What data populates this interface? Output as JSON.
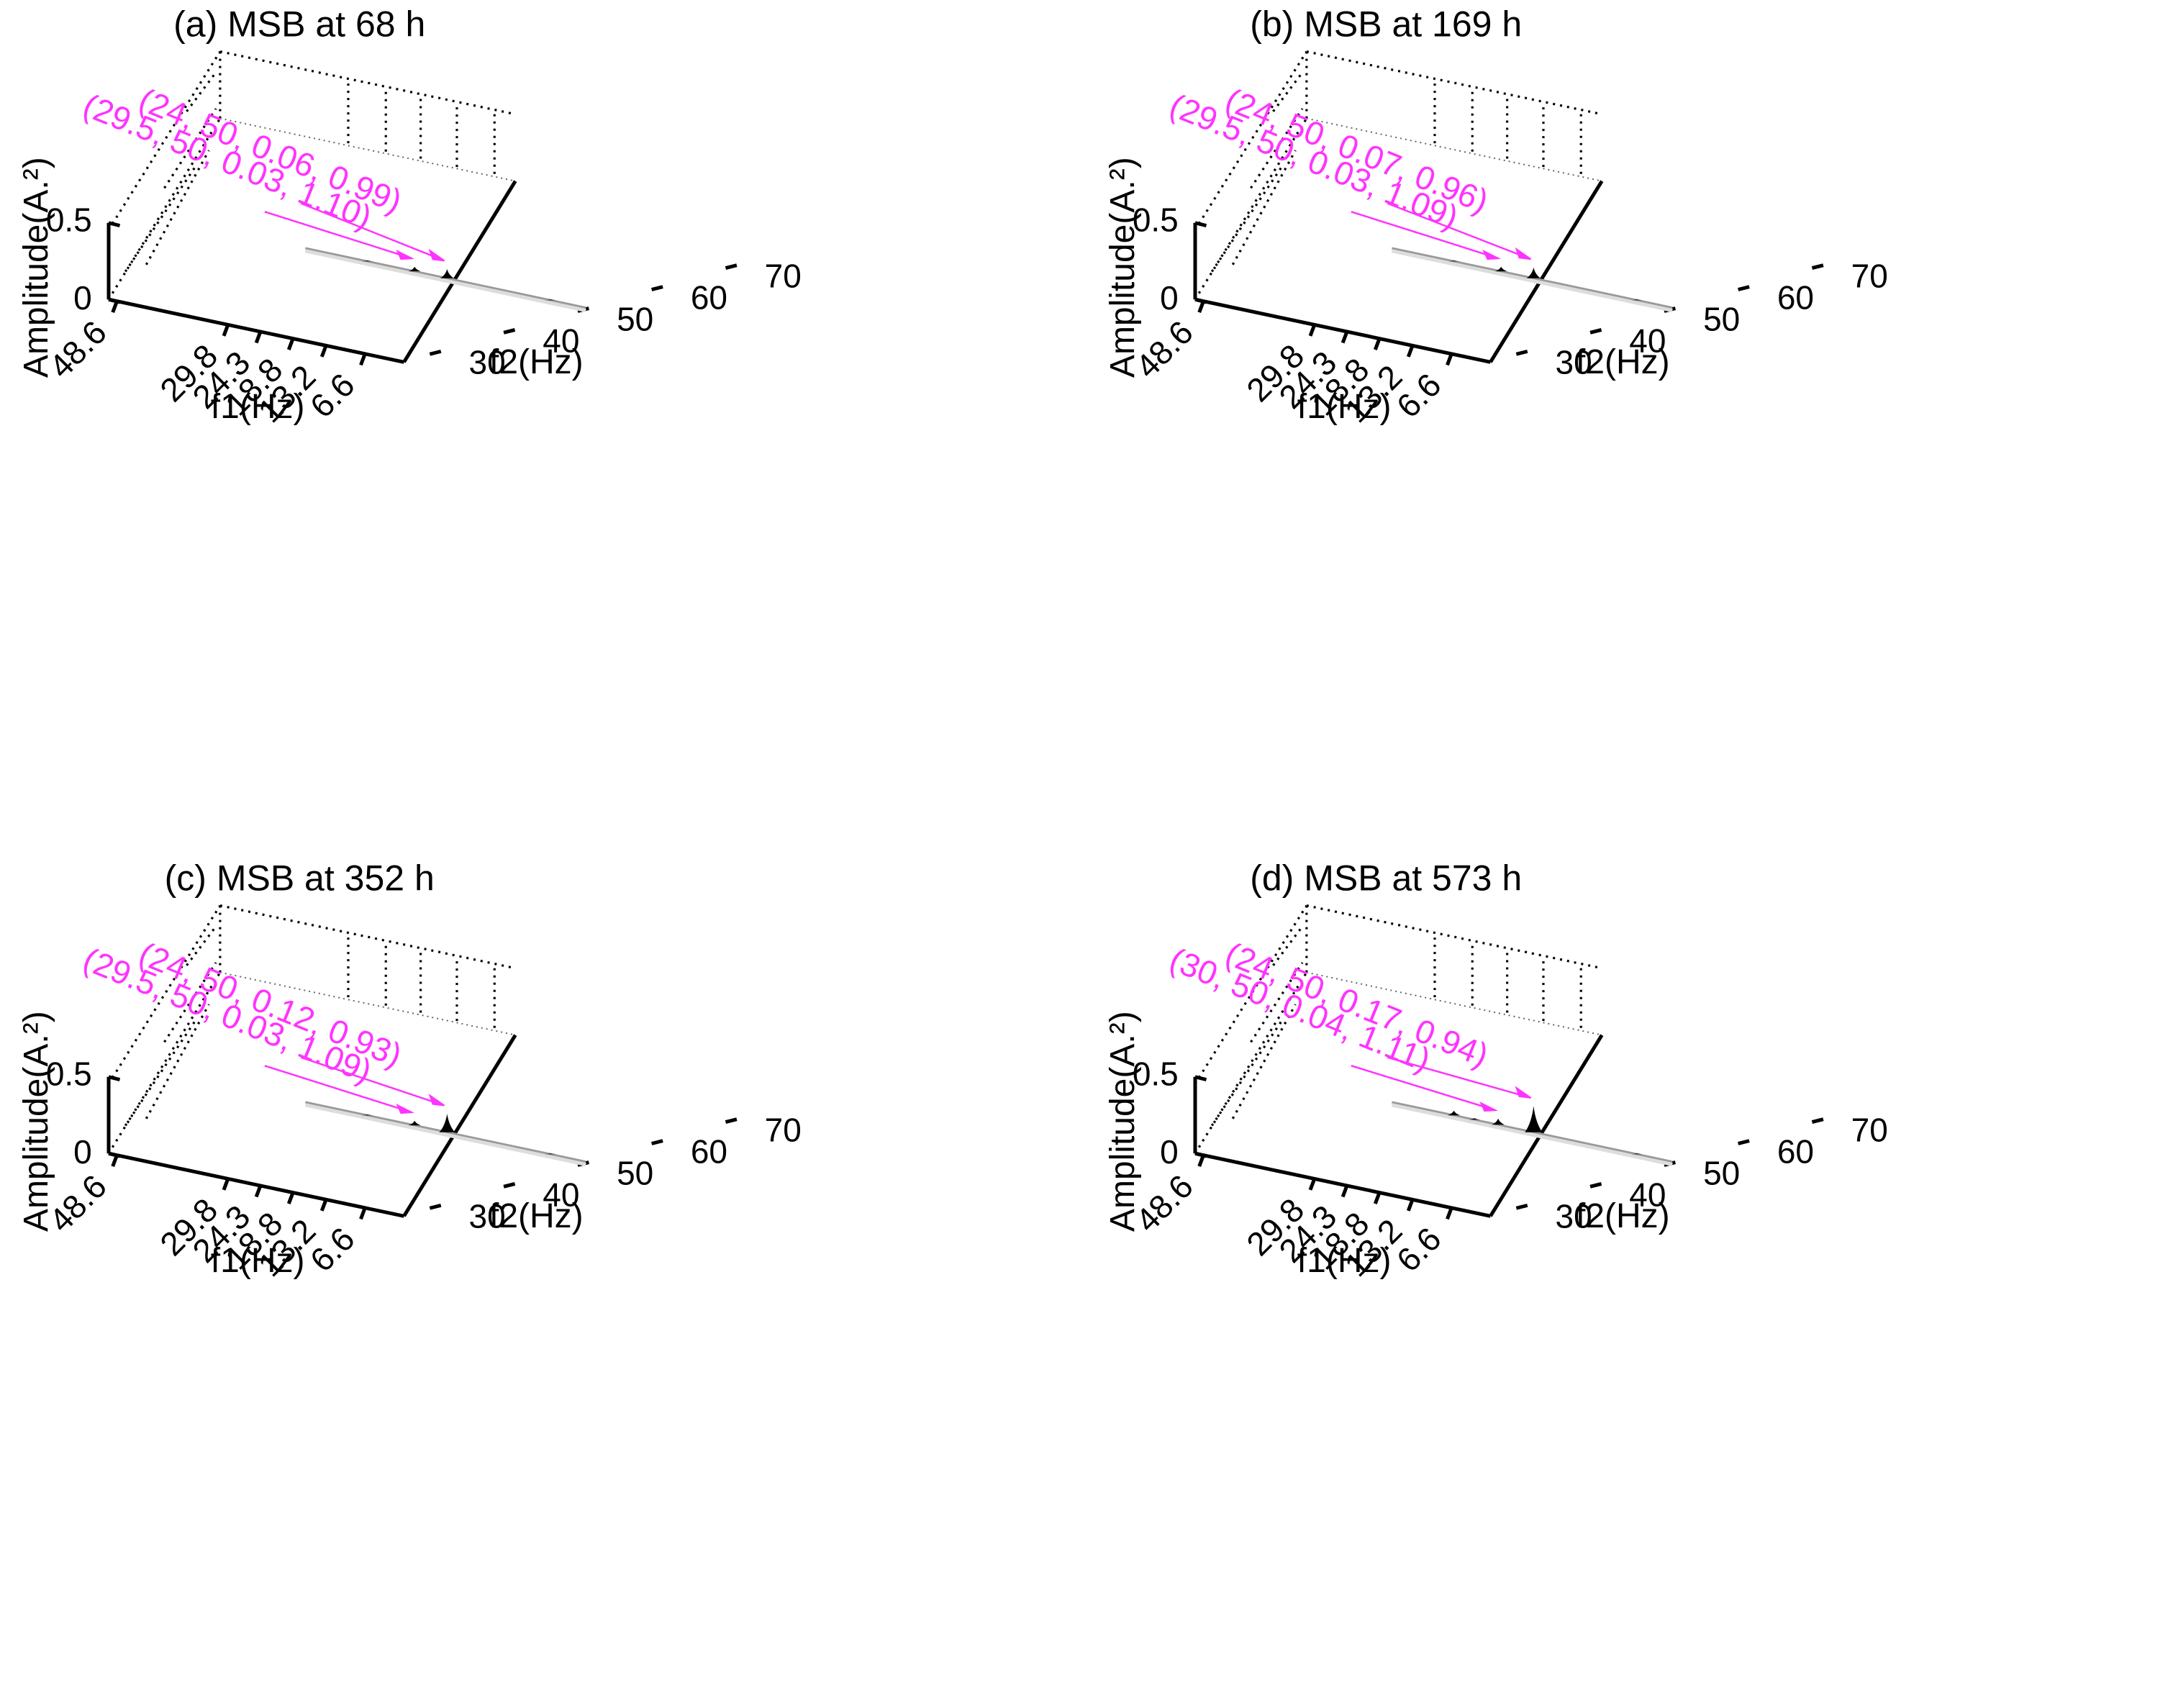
{
  "figure": {
    "accent_color": "#ff33ff",
    "peak_color": "#000000",
    "axis_color": "#000000"
  },
  "chart_data": [
    {
      "type": "surface-3d",
      "title": "(a) MSB at  68 h",
      "xlabel": "f1(Hz)",
      "ylabel": "f2(Hz)",
      "zlabel": "Amplitude(A.²)",
      "x_ticks": [
        "48.6",
        "29.8",
        "24.3",
        "18.8",
        "13.2",
        "6.6"
      ],
      "y_ticks": [
        "30",
        "40",
        "50",
        "60",
        "70"
      ],
      "z_ticks": [
        "0",
        "0.5"
      ],
      "zlim": [
        0,
        0.7
      ],
      "annotations": [
        {
          "text": "(24, 50, 0.06, 0.99)",
          "f1": 24,
          "f2": 50,
          "amplitude": 0.06
        },
        {
          "text": "(29.5, 50, 0.03, 1.10)",
          "f1": 29.5,
          "f2": 50,
          "amplitude": 0.03
        }
      ],
      "peaks": [
        {
          "f1": 24,
          "f2": 50,
          "amplitude": 0.06
        },
        {
          "f1": 29.5,
          "f2": 50,
          "amplitude": 0.03
        },
        {
          "f1": 37.5,
          "f2": 50,
          "amplitude": 0.005
        },
        {
          "f1": 6.5,
          "f2": 50,
          "amplitude": 0.005
        }
      ]
    },
    {
      "type": "surface-3d",
      "title": "(b) MSB at  169 h",
      "xlabel": "f1(Hz)",
      "ylabel": "f2(Hz)",
      "zlabel": "Amplitude(A.²)",
      "x_ticks": [
        "48.6",
        "29.8",
        "24.3",
        "18.8",
        "13.2",
        "6.6"
      ],
      "y_ticks": [
        "30",
        "40",
        "50",
        "60",
        "70"
      ],
      "z_ticks": [
        "0",
        "0.5"
      ],
      "zlim": [
        0,
        0.7
      ],
      "annotations": [
        {
          "text": "(24, 50, 0.07, 0.96)",
          "f1": 24,
          "f2": 50,
          "amplitude": 0.07
        },
        {
          "text": "(29.5, 50, 0.03, 1.09)",
          "f1": 29.5,
          "f2": 50,
          "amplitude": 0.03
        }
      ],
      "peaks": [
        {
          "f1": 24,
          "f2": 50,
          "amplitude": 0.07
        },
        {
          "f1": 29.5,
          "f2": 50,
          "amplitude": 0.03
        },
        {
          "f1": 37.5,
          "f2": 50,
          "amplitude": 0.005
        },
        {
          "f1": 6.5,
          "f2": 50,
          "amplitude": 0.005
        }
      ]
    },
    {
      "type": "surface-3d",
      "title": "(c) MSB at  352 h",
      "xlabel": "f1(Hz)",
      "ylabel": "f2(Hz)",
      "zlabel": "Amplitude(A.²)",
      "x_ticks": [
        "48.6",
        "29.8",
        "24.3",
        "18.8",
        "13.2",
        "6.6"
      ],
      "y_ticks": [
        "30",
        "40",
        "50",
        "60",
        "70"
      ],
      "z_ticks": [
        "0",
        "0.5"
      ],
      "zlim": [
        0,
        0.7
      ],
      "annotations": [
        {
          "text": "(24, 50, 0.12, 0.93)",
          "f1": 24,
          "f2": 50,
          "amplitude": 0.12
        },
        {
          "text": "(29.5, 50, 0.03, 1.09)",
          "f1": 29.5,
          "f2": 50,
          "amplitude": 0.03
        }
      ],
      "peaks": [
        {
          "f1": 24,
          "f2": 50,
          "amplitude": 0.12
        },
        {
          "f1": 29.5,
          "f2": 50,
          "amplitude": 0.03
        },
        {
          "f1": 37.5,
          "f2": 50,
          "amplitude": 0.005
        },
        {
          "f1": 6.5,
          "f2": 50,
          "amplitude": 0.005
        }
      ]
    },
    {
      "type": "surface-3d",
      "title": "(d) MSB at  573 h",
      "xlabel": "f1(Hz)",
      "ylabel": "f2(Hz)",
      "zlabel": "Amplitude(A.²)",
      "x_ticks": [
        "48.6",
        "29.8",
        "24.3",
        "18.8",
        "13.2",
        "6.6"
      ],
      "y_ticks": [
        "30",
        "40",
        "50",
        "60",
        "70"
      ],
      "z_ticks": [
        "0",
        "0.5"
      ],
      "zlim": [
        0,
        0.7
      ],
      "annotations": [
        {
          "text": "(24, 50, 0.17, 0.94)",
          "f1": 24,
          "f2": 50,
          "amplitude": 0.17
        },
        {
          "text": "(30, 50, 0.04, 1.11)",
          "f1": 30,
          "f2": 50,
          "amplitude": 0.04
        }
      ],
      "peaks": [
        {
          "f1": 24,
          "f2": 50,
          "amplitude": 0.17
        },
        {
          "f1": 30,
          "f2": 50,
          "amplitude": 0.04
        },
        {
          "f1": 34,
          "f2": 50,
          "amplitude": 0.01
        },
        {
          "f1": 37.5,
          "f2": 50,
          "amplitude": 0.03
        },
        {
          "f1": 6.5,
          "f2": 50,
          "amplitude": 0.005
        }
      ]
    }
  ]
}
